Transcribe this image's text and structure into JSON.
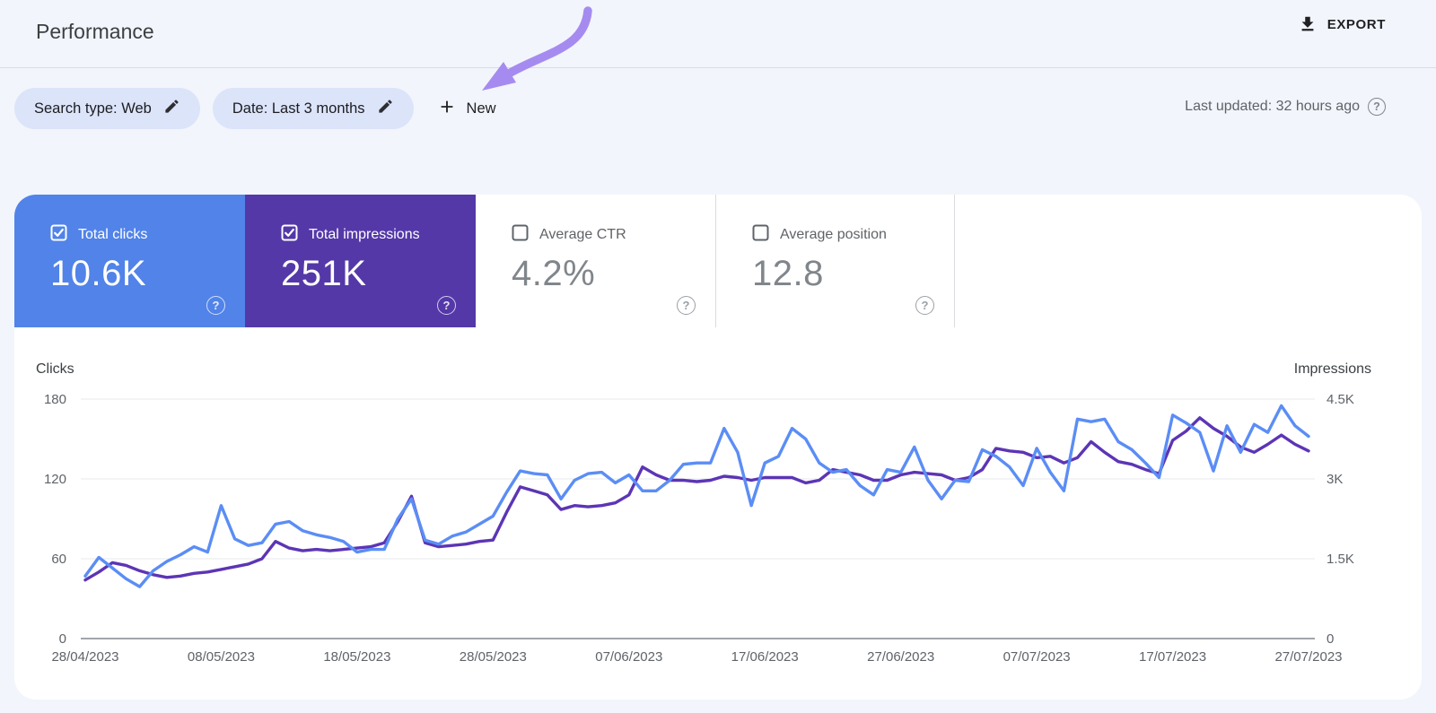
{
  "header": {
    "title": "Performance",
    "export_label": "EXPORT"
  },
  "filters": {
    "search_type_chip": "Search type: Web",
    "date_chip": "Date: Last 3 months",
    "new_button": "New",
    "last_updated": "Last updated: 32 hours ago",
    "help_glyph": "?"
  },
  "annotation": {
    "arrow_color": "#a58bf0",
    "target": "date-filter-chip"
  },
  "metric_cards": [
    {
      "label": "Total clicks",
      "value": "10.6K",
      "selected": true,
      "color": "#5183e9",
      "help_glyph": "?"
    },
    {
      "label": "Total impressions",
      "value": "251K",
      "selected": true,
      "color": "#5438a8",
      "help_glyph": "?"
    },
    {
      "label": "Average CTR",
      "value": "4.2%",
      "selected": false,
      "color": "#ffffff",
      "help_glyph": "?"
    },
    {
      "label": "Average position",
      "value": "12.8",
      "selected": false,
      "color": "#ffffff",
      "help_glyph": "?"
    }
  ],
  "chart_data": {
    "type": "line",
    "grid": true,
    "left_axis": {
      "label": "Clicks",
      "ticks": [
        "180",
        "120",
        "60",
        "0"
      ],
      "max": 180
    },
    "right_axis": {
      "label": "Impressions",
      "ticks": [
        "4.5K",
        "3K",
        "1.5K",
        "0"
      ],
      "max": 4500
    },
    "x_tick_labels": [
      "28/04/2023",
      "08/05/2023",
      "18/05/2023",
      "28/05/2023",
      "07/06/2023",
      "17/06/2023",
      "27/06/2023",
      "07/07/2023",
      "17/07/2023",
      "27/07/2023"
    ],
    "series": [
      {
        "name": "Impressions",
        "axis": "right",
        "color": "#5c35b5",
        "values": [
          1100,
          1250,
          1425,
          1375,
          1275,
          1200,
          1150,
          1175,
          1225,
          1250,
          1300,
          1350,
          1400,
          1500,
          1825,
          1700,
          1650,
          1675,
          1650,
          1675,
          1700,
          1725,
          1800,
          2200,
          2675,
          1800,
          1725,
          1750,
          1775,
          1825,
          1850,
          2375,
          2850,
          2775,
          2700,
          2425,
          2500,
          2475,
          2500,
          2550,
          2700,
          3225,
          3075,
          2975,
          2975,
          2950,
          2975,
          3050,
          3025,
          2975,
          3025,
          3025,
          3025,
          2925,
          2975,
          3175,
          3125,
          3075,
          2975,
          2975,
          3075,
          3125,
          3100,
          3075,
          2975,
          3025,
          3175,
          3575,
          3525,
          3500,
          3400,
          3425,
          3300,
          3400,
          3700,
          3500,
          3325,
          3275,
          3175,
          3100,
          3725,
          3900,
          4150,
          3950,
          3800,
          3600,
          3500,
          3650,
          3825,
          3650,
          3525
        ]
      },
      {
        "name": "Clicks",
        "axis": "left",
        "color": "#5b8df5",
        "values": [
          47,
          61,
          53,
          45,
          39,
          51,
          58,
          63,
          69,
          65,
          100,
          75,
          70,
          72,
          86,
          88,
          81,
          78,
          76,
          73,
          65,
          67,
          67,
          90,
          105,
          74,
          71,
          77,
          80,
          86,
          92,
          110,
          126,
          124,
          123,
          105,
          119,
          124,
          125,
          117,
          123,
          111,
          111,
          119,
          131,
          132,
          132,
          158,
          140,
          100,
          132,
          137,
          158,
          150,
          132,
          125,
          127,
          115,
          108,
          127,
          125,
          144,
          119,
          105,
          119,
          118,
          142,
          137,
          129,
          115,
          143,
          125,
          111,
          165,
          163,
          165,
          148,
          142,
          132,
          121,
          168,
          162,
          155,
          126,
          160,
          140,
          161,
          155,
          175,
          160,
          152
        ]
      }
    ]
  }
}
